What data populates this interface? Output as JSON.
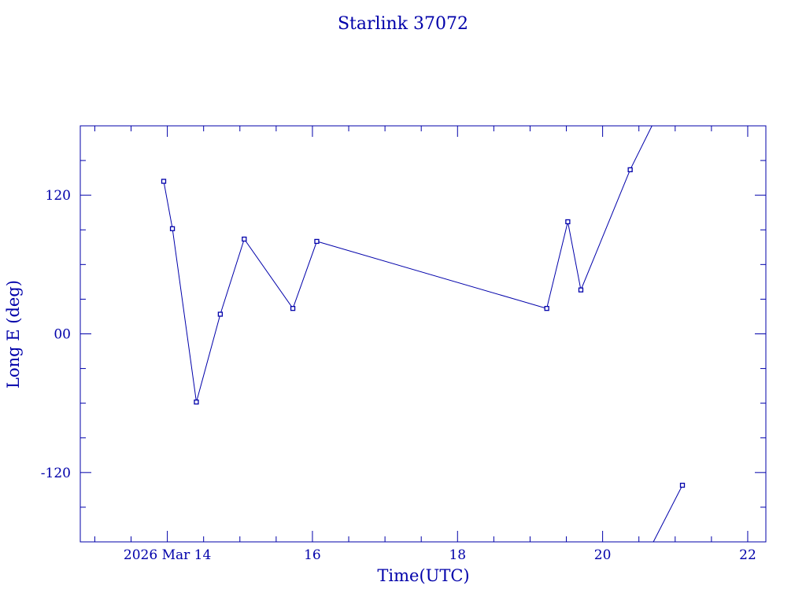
{
  "chart_data": {
    "type": "line",
    "title": "Starlink 37072",
    "xlabel": "Time(UTC)",
    "ylabel": "Long E (deg)",
    "xlim": [
      12.8,
      22.25
    ],
    "ylim": [
      -180,
      180
    ],
    "x_ticks": [
      {
        "value": 14,
        "label": "2026 Mar 14"
      },
      {
        "value": 16,
        "label": "16"
      },
      {
        "value": 18,
        "label": "18"
      },
      {
        "value": 20,
        "label": "20"
      },
      {
        "value": 22,
        "label": "22"
      }
    ],
    "y_ticks": [
      {
        "value": -120,
        "label": "-120"
      },
      {
        "value": 0,
        "label": "00"
      },
      {
        "value": 120,
        "label": "120"
      }
    ],
    "grid": false,
    "color": "#0000aa",
    "series": [
      {
        "points": [
          [
            13.95,
            132
          ],
          [
            14.07,
            91
          ],
          [
            14.4,
            -59
          ],
          [
            14.73,
            17
          ],
          [
            15.06,
            82
          ],
          [
            15.73,
            22
          ],
          [
            16.06,
            80
          ],
          [
            19.23,
            22
          ],
          [
            19.52,
            97
          ],
          [
            19.7,
            38
          ],
          [
            20.38,
            142
          ],
          [
            20.68,
            180
          ]
        ],
        "marker_count": 11
      },
      {
        "points": [
          [
            20.7,
            -180
          ],
          [
            21.1,
            -131
          ]
        ],
        "marker_start": 1
      }
    ]
  }
}
